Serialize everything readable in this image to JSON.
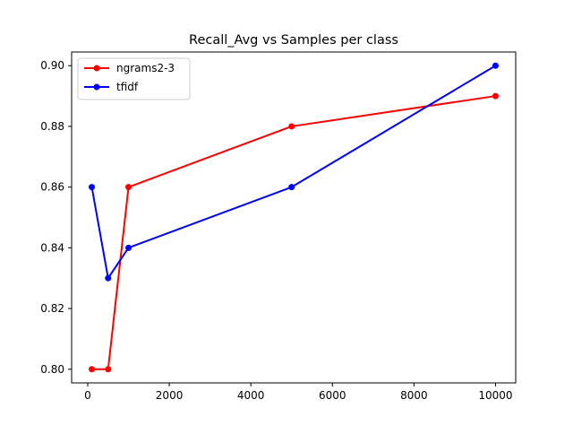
{
  "chart_data": {
    "type": "line",
    "title": "Recall_Avg vs Samples per class",
    "xlabel": "",
    "ylabel": "",
    "x": [
      100,
      500,
      1000,
      5000,
      10000
    ],
    "series": [
      {
        "name": "ngrams2-3",
        "color": "#ff0000",
        "values": [
          0.8,
          0.8,
          0.86,
          0.88,
          0.89
        ]
      },
      {
        "name": "tfidf",
        "color": "#0000ff",
        "values": [
          0.86,
          0.83,
          0.84,
          0.86,
          0.9
        ]
      }
    ],
    "xlim": [
      -395,
      10495
    ],
    "ylim": [
      0.7955,
      0.9045
    ],
    "xticks": [
      0,
      2000,
      4000,
      6000,
      8000,
      10000
    ],
    "xtick_labels": [
      "0",
      "2000",
      "4000",
      "6000",
      "8000",
      "10000"
    ],
    "yticks": [
      0.8,
      0.82,
      0.84,
      0.86,
      0.88,
      0.9
    ],
    "ytick_labels": [
      "0.80",
      "0.82",
      "0.84",
      "0.86",
      "0.88",
      "0.90"
    ],
    "grid": false,
    "legend_position": "top-left",
    "markers": true
  }
}
